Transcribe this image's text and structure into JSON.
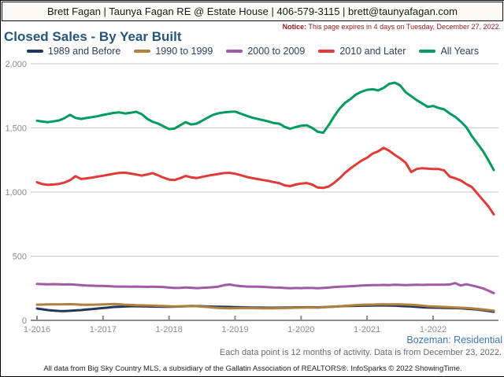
{
  "header": {
    "title": "Brett Fagan | Taunya Fagan RE @ Estate House | 406-579-3115 | brett@taunyafagan.com"
  },
  "notice": {
    "label": "Notice:",
    "text": "This page expires in 4 days on Tuesday, December 27, 2022."
  },
  "page_title": "Closed Sales - By Year Built",
  "annotations": {
    "market": "Bozeman: Residential",
    "data_note": "Each data point is 12 months of activity. Data is from December 23, 2022.",
    "attribution": "All data from Big Sky Country MLS, a subsidiary of the Gallatin Association of REALTORS®. InfoSparks © 2022 ShowingTime."
  },
  "chart_data": {
    "type": "line",
    "title": "Closed Sales - By Year Built",
    "x_start": "2016-01",
    "x_end": "2022-12",
    "x_step_months": 1,
    "n_points": 84,
    "x_tick_labels": [
      "1-2016",
      "1-2017",
      "1-2018",
      "1-2019",
      "1-2020",
      "1-2021",
      "1-2022"
    ],
    "y_tick_labels": [
      "0",
      "500",
      "1,000",
      "1,500",
      "2,000"
    ],
    "y_tick_values": [
      0,
      500,
      1000,
      1500,
      2000
    ],
    "ylim": [
      0,
      2000
    ],
    "grid": "horizontal",
    "legend_position": "top",
    "series": [
      {
        "name": "1989 and Before",
        "color": "#21365c",
        "values": [
          92,
          86,
          80,
          76,
          73,
          72,
          74,
          77,
          80,
          84,
          88,
          92,
          96,
          100,
          104,
          106,
          108,
          110,
          110,
          109,
          108,
          107,
          107,
          106,
          106,
          107,
          108,
          110,
          112,
          111,
          110,
          108,
          107,
          106,
          105,
          104,
          103,
          102,
          101,
          100,
          100,
          99,
          98,
          98,
          99,
          100,
          100,
          101,
          101,
          102,
          102,
          101,
          103,
          105,
          107,
          109,
          111,
          112,
          113,
          114,
          114,
          115,
          116,
          116,
          115,
          114,
          112,
          110,
          108,
          105,
          102,
          100,
          99,
          98,
          97,
          96,
          95,
          93,
          91,
          88,
          84,
          79,
          73,
          67
        ]
      },
      {
        "name": "1990 to 1999",
        "color": "#b0803d",
        "values": [
          122,
          123,
          124,
          125,
          124,
          125,
          126,
          124,
          122,
          121,
          122,
          123,
          124,
          126,
          127,
          125,
          122,
          120,
          118,
          117,
          116,
          115,
          113,
          112,
          110,
          108,
          109,
          111,
          112,
          110,
          107,
          104,
          100,
          97,
          95,
          94,
          95,
          96,
          97,
          96,
          95,
          94,
          93,
          94,
          95,
          96,
          97,
          98,
          99,
          100,
          100,
          99,
          101,
          104,
          107,
          110,
          113,
          116,
          119,
          121,
          122,
          123,
          124,
          125,
          124,
          125,
          124,
          123,
          121,
          118,
          114,
          110,
          108,
          106,
          104,
          102,
          100,
          98,
          96,
          93,
          89,
          85,
          80,
          75
        ]
      },
      {
        "name": "2000 to 2009",
        "color": "#a25aa5",
        "values": [
          284,
          282,
          281,
          282,
          281,
          280,
          281,
          278,
          274,
          271,
          270,
          269,
          268,
          266,
          264,
          263,
          263,
          262,
          263,
          262,
          261,
          262,
          261,
          259,
          255,
          252,
          253,
          256,
          254,
          251,
          253,
          255,
          258,
          263,
          274,
          279,
          272,
          267,
          264,
          262,
          263,
          261,
          258,
          256,
          255,
          252,
          250,
          252,
          251,
          253,
          252,
          250,
          252,
          255,
          259,
          262,
          264,
          266,
          268,
          271,
          273,
          275,
          274,
          276,
          275,
          277,
          276,
          275,
          276,
          277,
          276,
          277,
          278,
          277,
          278,
          280,
          290,
          272,
          281,
          272,
          262,
          250,
          232,
          212
        ]
      },
      {
        "name": "2010 and Later",
        "color": "#e23a36",
        "values": [
          1076,
          1062,
          1056,
          1059,
          1064,
          1074,
          1092,
          1124,
          1102,
          1107,
          1113,
          1120,
          1127,
          1135,
          1143,
          1150,
          1151,
          1144,
          1137,
          1128,
          1137,
          1148,
          1130,
          1112,
          1097,
          1094,
          1108,
          1125,
          1115,
          1109,
          1118,
          1127,
          1134,
          1141,
          1148,
          1150,
          1143,
          1131,
          1119,
          1110,
          1102,
          1094,
          1087,
          1078,
          1070,
          1052,
          1046,
          1058,
          1066,
          1070,
          1058,
          1035,
          1032,
          1043,
          1071,
          1108,
          1151,
          1185,
          1216,
          1246,
          1268,
          1300,
          1318,
          1345,
          1322,
          1290,
          1262,
          1228,
          1156,
          1180,
          1186,
          1182,
          1180,
          1179,
          1168,
          1120,
          1107,
          1090,
          1062,
          1040,
          990,
          940,
          890,
          826
        ]
      },
      {
        "name": "All Years",
        "color": "#009c5e",
        "values": [
          1556,
          1549,
          1545,
          1551,
          1558,
          1576,
          1602,
          1578,
          1570,
          1577,
          1584,
          1591,
          1601,
          1609,
          1617,
          1621,
          1612,
          1618,
          1626,
          1608,
          1572,
          1548,
          1534,
          1512,
          1490,
          1495,
          1520,
          1545,
          1527,
          1533,
          1556,
          1580,
          1602,
          1615,
          1621,
          1625,
          1627,
          1611,
          1596,
          1581,
          1571,
          1561,
          1551,
          1538,
          1533,
          1508,
          1493,
          1506,
          1517,
          1521,
          1500,
          1470,
          1462,
          1522,
          1590,
          1651,
          1696,
          1726,
          1762,
          1782,
          1797,
          1801,
          1792,
          1812,
          1843,
          1853,
          1831,
          1777,
          1747,
          1716,
          1690,
          1664,
          1671,
          1655,
          1644,
          1612,
          1586,
          1549,
          1506,
          1438,
          1380,
          1322,
          1250,
          1172
        ]
      }
    ]
  }
}
